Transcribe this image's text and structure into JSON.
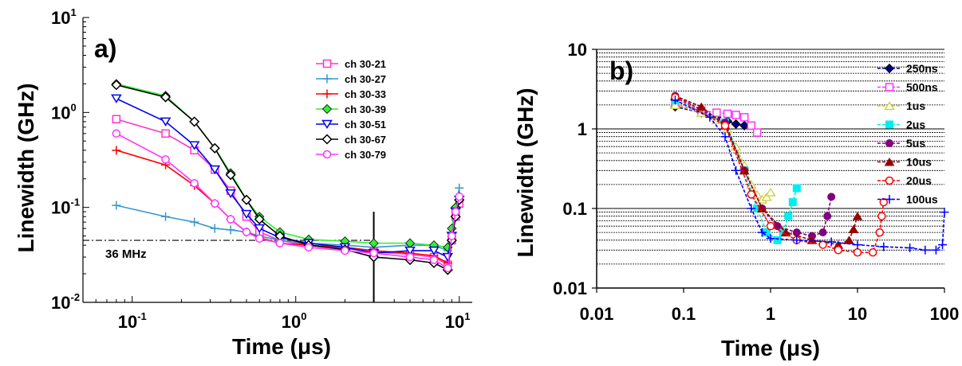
{
  "chart_data": [
    {
      "type": "line",
      "panel": "a)",
      "xlabel": "Time (μs)",
      "ylabel": "Linewidth (GHz)",
      "xscale": "log",
      "yscale": "log",
      "xlim": [
        0.05,
        12
      ],
      "ylim": [
        0.01,
        10
      ],
      "x_tick_labels": [
        {
          "value": 0.1,
          "base": "10",
          "exp": "-1"
        },
        {
          "value": 1,
          "base": "10",
          "exp": "0"
        },
        {
          "value": 10,
          "base": "10",
          "exp": "1"
        }
      ],
      "y_tick_labels": [
        {
          "value": 0.01,
          "base": "10",
          "exp": "-2"
        },
        {
          "value": 0.1,
          "base": "10",
          "exp": "-1"
        },
        {
          "value": 1,
          "base": "10",
          "exp": "0"
        },
        {
          "value": 10,
          "base": "10",
          "exp": "1"
        }
      ],
      "legend_position": "top-right",
      "grid": false,
      "reference_line": {
        "y": 0.045,
        "label": "36 MHz",
        "style": "dash-dot"
      },
      "vertical_line": {
        "x": 3
      },
      "series": [
        {
          "name": "ch 30-21",
          "color": "#ff33cc",
          "marker": "square-open",
          "x": [
            0.08,
            0.16,
            0.24,
            0.32,
            0.4,
            0.5,
            0.6,
            0.8,
            1.2,
            2,
            3,
            5,
            7,
            8.5,
            9,
            9.5,
            10
          ],
          "y": [
            0.85,
            0.6,
            0.4,
            0.25,
            0.15,
            0.08,
            0.055,
            0.045,
            0.04,
            0.037,
            0.034,
            0.032,
            0.03,
            0.025,
            0.045,
            0.08,
            0.11
          ]
        },
        {
          "name": "ch 30-27",
          "color": "#3399cc",
          "marker": "plus",
          "x": [
            0.08,
            0.16,
            0.24,
            0.32,
            0.4,
            0.5,
            0.6,
            0.8,
            1.2,
            2,
            3,
            5,
            7,
            8.5,
            9,
            9.5,
            10
          ],
          "y": [
            0.105,
            0.08,
            0.07,
            0.06,
            0.058,
            0.055,
            0.05,
            0.045,
            0.042,
            0.04,
            0.038,
            0.04,
            0.04,
            0.035,
            0.06,
            0.1,
            0.16
          ]
        },
        {
          "name": "ch 30-33",
          "color": "#ff0000",
          "marker": "plus",
          "x": [
            0.08,
            0.16,
            0.24,
            0.32,
            0.4,
            0.5,
            0.6,
            0.8,
            1.2,
            2,
            3,
            5,
            7,
            8.5,
            9,
            9.5,
            10
          ],
          "y": [
            0.4,
            0.28,
            0.17,
            0.11,
            0.075,
            0.055,
            0.048,
            0.042,
            0.04,
            0.038,
            0.035,
            0.033,
            0.031,
            0.026,
            0.05,
            0.09,
            0.13
          ]
        },
        {
          "name": "ch 30-39",
          "color": "#33ee33",
          "marker": "diamond-filled",
          "x": [
            0.08,
            0.16,
            0.24,
            0.32,
            0.4,
            0.5,
            0.6,
            0.8,
            1.2,
            2,
            3,
            5,
            7,
            8.5,
            9,
            9.5,
            10
          ],
          "y": [
            2.0,
            1.5,
            0.8,
            0.42,
            0.23,
            0.12,
            0.08,
            0.055,
            0.046,
            0.044,
            0.042,
            0.042,
            0.04,
            0.038,
            0.06,
            0.1,
            0.13
          ]
        },
        {
          "name": "ch 30-51",
          "color": "#0000ee",
          "marker": "triangle-down-open",
          "x": [
            0.08,
            0.16,
            0.24,
            0.32,
            0.4,
            0.5,
            0.6,
            0.8,
            1.2,
            2,
            3,
            5,
            7,
            8.5,
            9,
            9.5,
            10
          ],
          "y": [
            1.4,
            0.8,
            0.45,
            0.25,
            0.14,
            0.085,
            0.06,
            0.048,
            0.042,
            0.038,
            0.033,
            0.035,
            0.035,
            0.03,
            0.05,
            0.09,
            0.12
          ]
        },
        {
          "name": "ch 30-67",
          "color": "#000000",
          "marker": "diamond-open",
          "x": [
            0.08,
            0.16,
            0.24,
            0.32,
            0.4,
            0.5,
            0.6,
            0.8,
            1.2,
            2,
            3,
            5,
            7,
            8.5,
            9,
            9.5,
            10
          ],
          "y": [
            1.95,
            1.45,
            0.8,
            0.42,
            0.22,
            0.12,
            0.075,
            0.05,
            0.04,
            0.036,
            0.03,
            0.028,
            0.026,
            0.022,
            0.045,
            0.08,
            0.12
          ]
        },
        {
          "name": "ch 30-79",
          "color": "#ff33ff",
          "marker": "circle-open",
          "x": [
            0.08,
            0.16,
            0.24,
            0.32,
            0.4,
            0.5,
            0.6,
            0.8,
            1.2,
            2,
            3,
            5,
            7,
            8.5,
            9,
            9.5,
            10
          ],
          "y": [
            0.6,
            0.32,
            0.18,
            0.11,
            0.075,
            0.055,
            0.047,
            0.042,
            0.038,
            0.035,
            0.033,
            0.03,
            0.028,
            0.023,
            0.05,
            0.09,
            0.13
          ]
        }
      ]
    },
    {
      "type": "line",
      "panel": "b)",
      "xlabel": "Time (μs)",
      "ylabel": "Linewidth (GHz)",
      "xscale": "log",
      "yscale": "log",
      "xlim": [
        0.01,
        100
      ],
      "ylim": [
        0.01,
        10
      ],
      "x_tick_labels": [
        {
          "value": 0.01,
          "text": "0.01"
        },
        {
          "value": 0.1,
          "text": "0.1"
        },
        {
          "value": 1,
          "text": "1"
        },
        {
          "value": 10,
          "text": "10"
        },
        {
          "value": 100,
          "text": "100"
        }
      ],
      "y_tick_labels": [
        {
          "value": 0.01,
          "text": "0.01"
        },
        {
          "value": 0.1,
          "text": "0.1"
        },
        {
          "value": 1,
          "text": "1"
        },
        {
          "value": 10,
          "text": "10"
        }
      ],
      "legend_position": "top-right",
      "grid": "horizontal dashed minor gridlines",
      "series": [
        {
          "name": "250ns",
          "color": "#000080",
          "marker": "diamond-filled",
          "x": [
            0.08,
            0.16,
            0.24,
            0.32,
            0.4,
            0.5
          ],
          "y": [
            1.9,
            1.6,
            1.4,
            1.25,
            1.15,
            1.1
          ]
        },
        {
          "name": "500ns",
          "color": "#ff33ff",
          "marker": "square-open",
          "x": [
            0.08,
            0.16,
            0.24,
            0.32,
            0.4,
            0.5,
            0.6,
            0.7
          ],
          "y": [
            2.0,
            1.7,
            1.6,
            1.55,
            1.5,
            1.4,
            1.1,
            0.9
          ]
        },
        {
          "name": "1us",
          "color": "#cccc33",
          "marker": "triangle-open",
          "x": [
            0.08,
            0.16,
            0.24,
            0.32,
            0.4,
            0.5,
            0.6,
            0.7,
            0.8,
            0.9,
            1.0
          ],
          "y": [
            2.0,
            1.6,
            1.3,
            1.0,
            0.6,
            0.35,
            0.2,
            0.15,
            0.13,
            0.14,
            0.16
          ]
        },
        {
          "name": "2us",
          "color": "#00eeee",
          "marker": "square-filled",
          "x": [
            0.08,
            0.3,
            0.5,
            0.7,
            0.9,
            1.2,
            1.4,
            1.6,
            1.8,
            2.0
          ],
          "y": [
            2.3,
            1.2,
            0.3,
            0.1,
            0.05,
            0.04,
            0.05,
            0.08,
            0.12,
            0.18
          ]
        },
        {
          "name": "5us",
          "color": "#800080",
          "marker": "circle-filled",
          "x": [
            0.08,
            0.3,
            0.5,
            0.8,
            1.2,
            2,
            3,
            4,
            4.5,
            5
          ],
          "y": [
            2.6,
            1.2,
            0.3,
            0.1,
            0.06,
            0.05,
            0.045,
            0.05,
            0.08,
            0.14
          ]
        },
        {
          "name": "10us",
          "color": "#990000",
          "marker": "triangle-filled",
          "x": [
            0.08,
            0.16,
            0.3,
            0.5,
            0.8,
            1.5,
            3,
            6,
            8,
            9,
            10
          ],
          "y": [
            2.6,
            1.9,
            1.1,
            0.3,
            0.1,
            0.05,
            0.04,
            0.035,
            0.04,
            0.055,
            0.08
          ]
        },
        {
          "name": "20us",
          "color": "#ff0000",
          "marker": "circle-open",
          "x": [
            0.08,
            0.3,
            0.6,
            1,
            2,
            4,
            6,
            10,
            15,
            18,
            19,
            20
          ],
          "y": [
            2.5,
            1.1,
            0.15,
            0.06,
            0.04,
            0.035,
            0.03,
            0.028,
            0.028,
            0.05,
            0.08,
            0.12
          ]
        },
        {
          "name": "100us",
          "color": "#0000ff",
          "marker": "plus",
          "x": [
            0.08,
            0.2,
            0.3,
            0.4,
            0.6,
            0.8,
            1,
            2,
            5,
            10,
            20,
            40,
            60,
            80,
            95,
            100
          ],
          "y": [
            2.3,
            1.4,
            0.8,
            0.3,
            0.1,
            0.05,
            0.042,
            0.04,
            0.038,
            0.035,
            0.033,
            0.032,
            0.03,
            0.03,
            0.035,
            0.09
          ]
        }
      ]
    }
  ]
}
